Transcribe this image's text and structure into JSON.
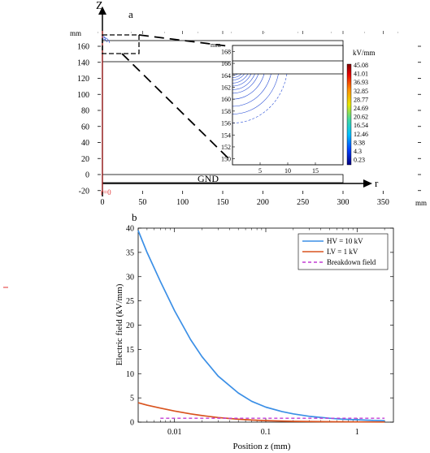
{
  "panel_a": {
    "label": "a",
    "z_axis_label": "Z",
    "r_axis_label": "r",
    "unit_y": "mm",
    "unit_x": "mm",
    "inset_unit": "mm",
    "origin_label": "r=0",
    "ground_label": "GND",
    "colorbar_title": "kV/mm",
    "colorbar_ticks": [
      "45.08",
      "41.01",
      "36.93",
      "32.85",
      "28.77",
      "24.69",
      "20.62",
      "16.54",
      "12.46",
      "8.38",
      "4.3",
      "0.23"
    ],
    "colorbar_colors": [
      "#7f0000",
      "#e60000",
      "#ff6a00",
      "#ffb000",
      "#e6e600",
      "#a6e600",
      "#40d9a0",
      "#00c8e6",
      "#0096ff",
      "#0050ff",
      "#0014d0",
      "#000080"
    ],
    "contour_color": "#2a4fd6"
  },
  "chart_data": [
    {
      "type": "scatter",
      "title": "a",
      "xlabel": "",
      "ylabel": "",
      "x_unit": "mm",
      "y_unit": "mm",
      "xlim": [
        0,
        420
      ],
      "ylim": [
        -22,
        170
      ],
      "x_ticks": [
        0,
        50,
        100,
        150,
        200,
        250,
        300,
        350
      ],
      "y_ticks": [
        -20,
        0,
        20,
        40,
        60,
        80,
        100,
        120,
        140,
        160
      ],
      "inset": {
        "xlim": [
          0,
          20
        ],
        "ylim": [
          149,
          169
        ],
        "x_ticks": [
          5,
          10,
          15
        ],
        "y_ticks": [
          150,
          152,
          154,
          156,
          158,
          160,
          162,
          164,
          166,
          168
        ]
      }
    },
    {
      "type": "line",
      "title": "b",
      "xlabel": "Position  z (mm)",
      "ylabel": "Electric field (kV/mm)",
      "x_scale": "log",
      "xlim": [
        0.004,
        2.5
      ],
      "ylim": [
        0,
        40
      ],
      "x_tick_labels": [
        "0.01",
        "0.1",
        "1"
      ],
      "y_ticks": [
        0,
        5,
        10,
        15,
        20,
        25,
        30,
        35,
        40
      ],
      "legend_position": "top-right",
      "series": [
        {
          "name": "HV = 10 kV",
          "color": "#3b8fe6",
          "x": [
            0.004,
            0.005,
            0.007,
            0.01,
            0.015,
            0.02,
            0.03,
            0.05,
            0.07,
            0.1,
            0.15,
            0.2,
            0.3,
            0.5,
            0.7,
            1.0,
            1.5,
            2.0
          ],
          "y": [
            39.5,
            35.0,
            29.0,
            23.0,
            17.0,
            13.5,
            9.5,
            6.0,
            4.3,
            3.1,
            2.2,
            1.7,
            1.2,
            0.8,
            0.6,
            0.5,
            0.35,
            0.3
          ]
        },
        {
          "name": "LV = 1 kV",
          "color": "#d9531e",
          "x": [
            0.004,
            0.005,
            0.007,
            0.01,
            0.015,
            0.02,
            0.03,
            0.05,
            0.07,
            0.1,
            0.2,
            0.5,
            1.0,
            2.0
          ],
          "y": [
            4.0,
            3.5,
            2.9,
            2.3,
            1.7,
            1.35,
            0.95,
            0.6,
            0.43,
            0.31,
            0.17,
            0.08,
            0.05,
            0.03
          ]
        },
        {
          "name": "Breakdown field",
          "color": "#c23bd4",
          "dashed": true,
          "x": [
            0.007,
            2.0
          ],
          "y": [
            0.8,
            0.8
          ]
        }
      ]
    }
  ]
}
